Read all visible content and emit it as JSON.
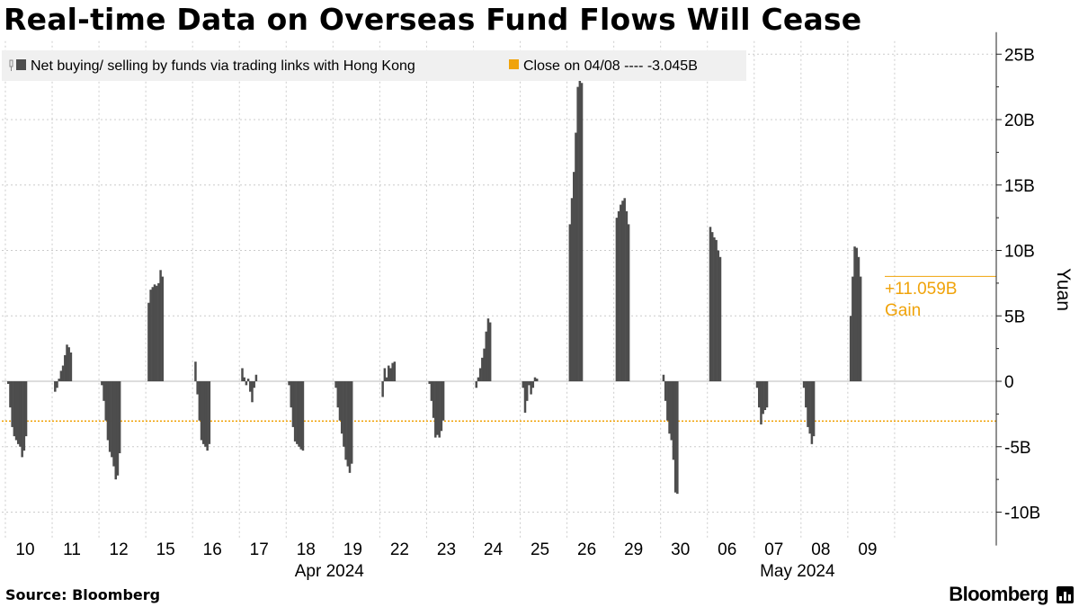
{
  "title": "Real-time Data on Overseas Fund Flows Will Cease",
  "source": "Source: Bloomberg",
  "brand": "Bloomberg",
  "colors": {
    "bar": "#4d4d4d",
    "close_line": "#f0a30a",
    "grid": "#cccccc",
    "axis": "#222222",
    "legend_bg": "#f0f0f0"
  },
  "chart_data": {
    "type": "bar",
    "ylabel": "Yuan",
    "ylim": [
      -12000000000,
      26000000000
    ],
    "yticks": [
      {
        "value": 25000000000,
        "label": "25B"
      },
      {
        "value": 20000000000,
        "label": "20B"
      },
      {
        "value": 15000000000,
        "label": "15B"
      },
      {
        "value": 10000000000,
        "label": "10B"
      },
      {
        "value": 5000000000,
        "label": "5B"
      },
      {
        "value": 0,
        "label": "0"
      },
      {
        "value": -5000000000,
        "label": "-5B"
      },
      {
        "value": -10000000000,
        "label": "-10B"
      }
    ],
    "categories": [
      "10",
      "11",
      "12",
      "15",
      "16",
      "17",
      "18",
      "19",
      "22",
      "23",
      "24",
      "25",
      "26",
      "29",
      "30",
      "06",
      "07",
      "08",
      "09"
    ],
    "month_labels": [
      {
        "label": "Apr 2024",
        "center_category_index": 6.5
      },
      {
        "label": "May 2024",
        "center_category_index": 16.5
      }
    ],
    "legend": [
      {
        "icon": "bar-legend-icon",
        "label": "Net buying/ selling by funds via trading links with Hong Kong"
      },
      {
        "icon": "close-legend-icon",
        "label": "Close on 04/08 ---- -3.045B"
      }
    ],
    "reference_line": {
      "label": "Close on 04/08",
      "value": -3045000000
    },
    "annotation": {
      "line1": "+11.059B",
      "line2": "Gain",
      "value": 8014000000
    },
    "series": [
      {
        "name": "Net buying/ selling by funds via trading links with Hong Kong",
        "intraday_values_billion": [
          [
            -0.2,
            -2.0,
            -3.5,
            -4.2,
            -4.5,
            -4.8,
            -5.0,
            -5.8,
            -5.3,
            -4.2
          ],
          [
            -0.8,
            -0.5,
            0.2,
            0.8,
            1.2,
            2.0,
            2.8,
            2.6,
            2.2
          ],
          [
            -0.3,
            -1.5,
            -3.0,
            -4.5,
            -5.4,
            -5.8,
            -6.5,
            -7.5,
            -7.2,
            -5.5
          ],
          [
            6.0,
            7.0,
            7.2,
            7.4,
            7.3,
            7.5,
            8.5,
            8.0
          ],
          [
            1.5,
            -1.0,
            -3.0,
            -4.5,
            -4.8,
            -5.0,
            -5.3,
            -4.8
          ],
          [
            1.0,
            0.3,
            -0.3,
            0.2,
            -0.8,
            -1.6,
            -0.5,
            0.5
          ],
          [
            -0.3,
            -2.0,
            -3.5,
            -4.6,
            -4.8,
            -5.0,
            -5.2,
            -5.3
          ],
          [
            -0.5,
            -2.0,
            -3.0,
            -4.0,
            -5.0,
            -6.0,
            -6.5,
            -7.0,
            -6.3
          ],
          [
            -1.2,
            1.0,
            0.3,
            1.2,
            1.0,
            1.4,
            1.5
          ],
          [
            -0.2,
            -1.5,
            -2.8,
            -4.3,
            -4.1,
            -4.3,
            -3.8,
            -3.0
          ],
          [
            -0.5,
            0.3,
            1.0,
            1.8,
            2.5,
            3.8,
            4.8,
            4.5
          ],
          [
            -0.5,
            -2.4,
            -1.5,
            -0.3,
            -1.0,
            -0.5,
            0.3,
            0.2
          ],
          [
            12.0,
            14.0,
            16.0,
            19.0,
            22.5,
            23.0,
            22.8
          ],
          [
            12.5,
            13.0,
            13.5,
            13.8,
            14.0,
            13.0,
            12.0
          ],
          [
            0.5,
            -1.5,
            -3.0,
            -4.0,
            -4.5,
            -6.0,
            -8.5,
            -8.6
          ],
          [
            11.8,
            11.4,
            11.0,
            10.8,
            10.0,
            9.5
          ],
          [
            -0.5,
            -2.0,
            -3.3,
            -2.5,
            -2.2,
            -2.0
          ],
          [
            -0.5,
            -2.0,
            -3.5,
            -4.0,
            -4.8,
            -4.2
          ],
          [
            5.0,
            8.0,
            10.3,
            10.2,
            9.5,
            8.0
          ]
        ]
      }
    ]
  }
}
